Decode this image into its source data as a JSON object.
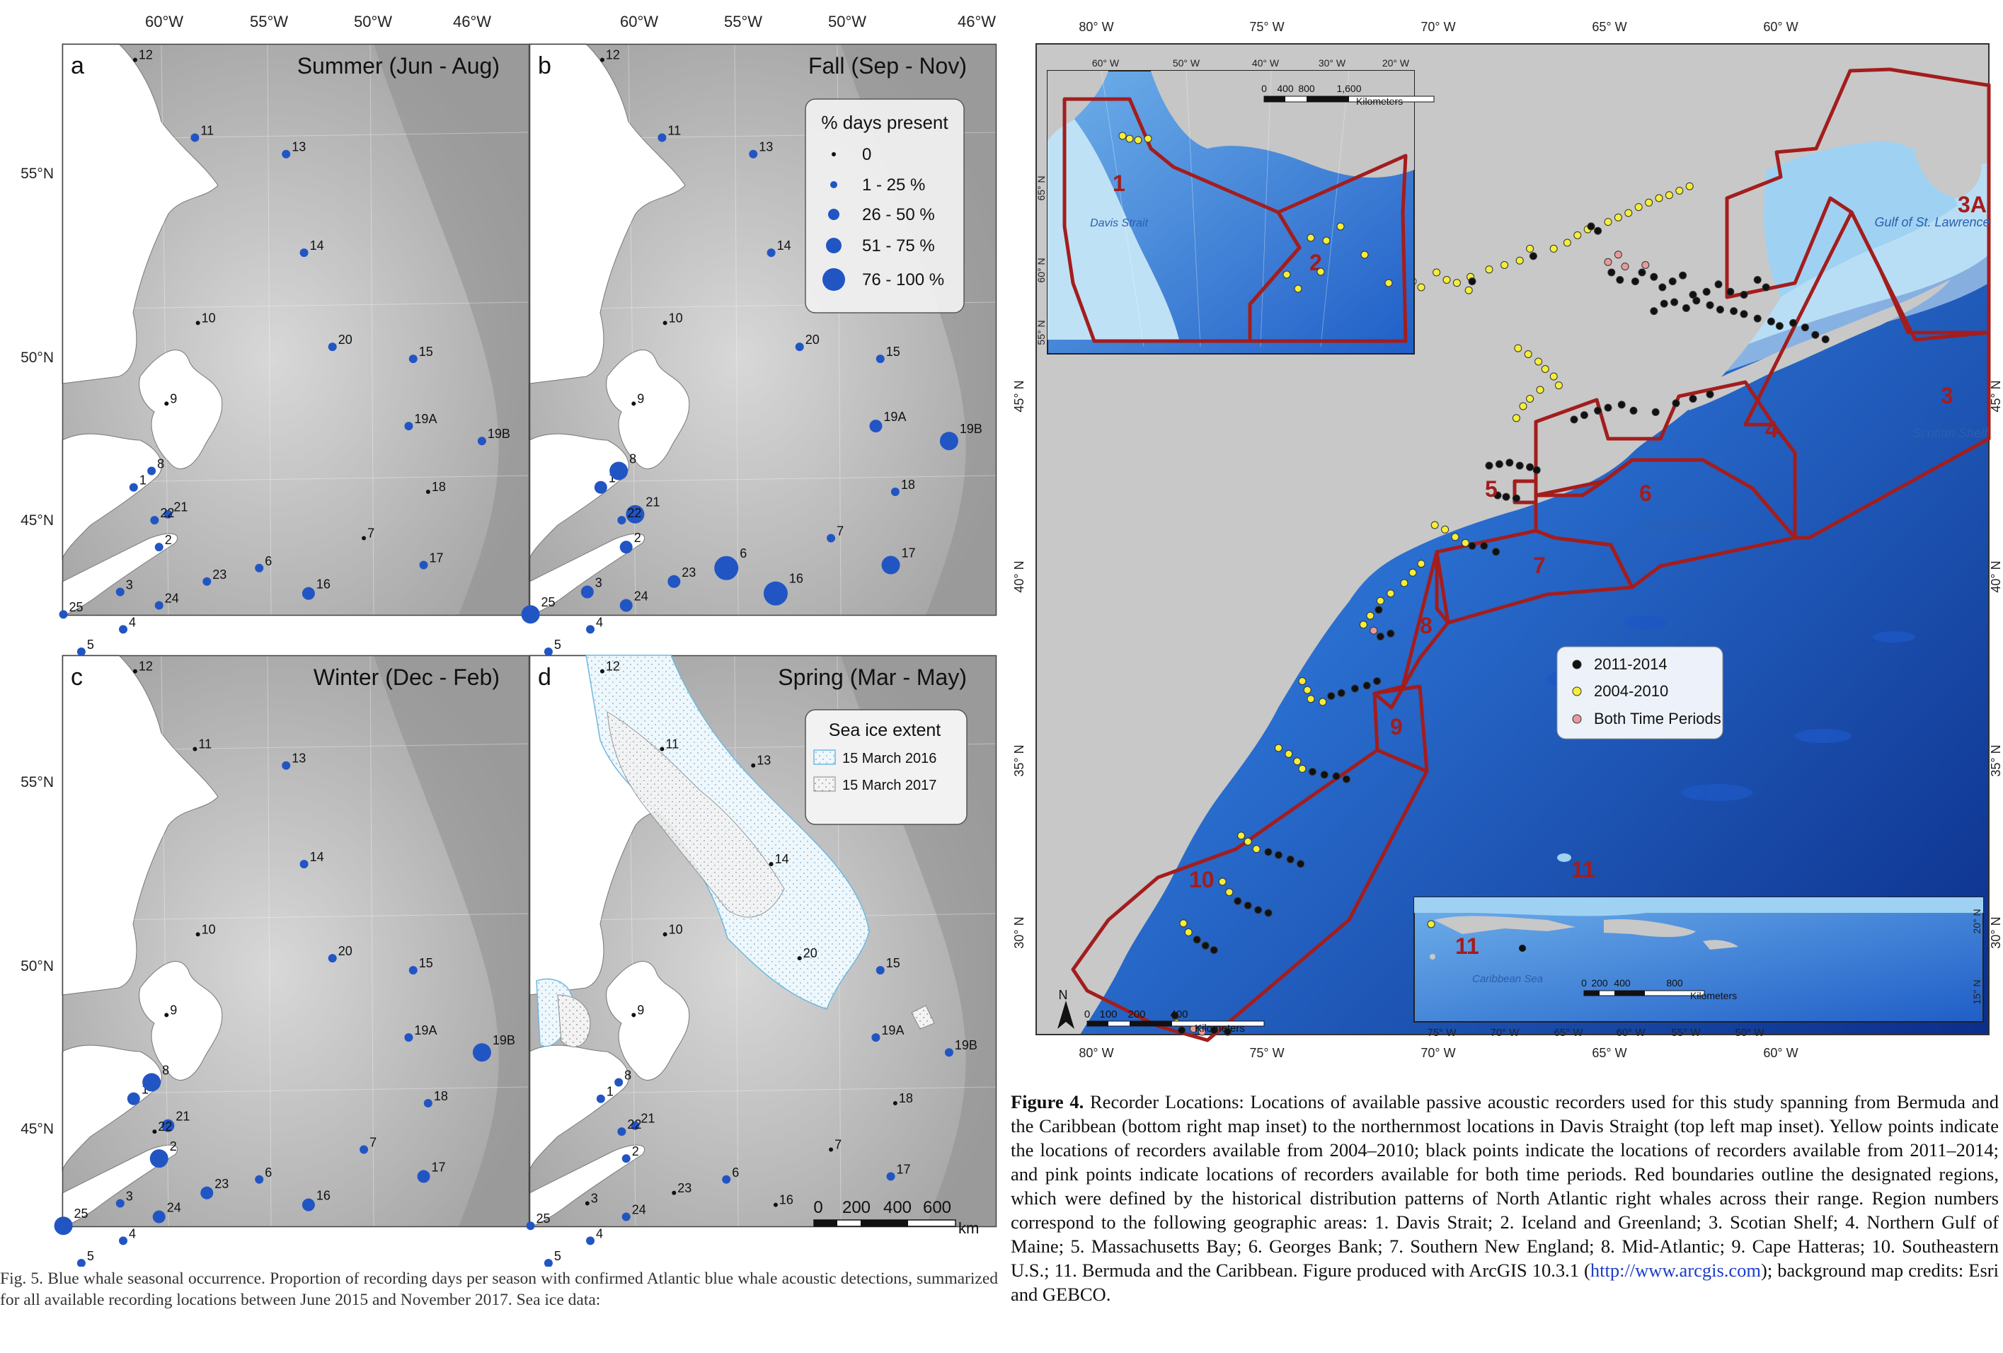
{
  "fig5": {
    "lon_labels": [
      "60°W",
      "55°W",
      "50°W",
      "46°W"
    ],
    "lat_labels": [
      "55°N",
      "50°N",
      "45°N"
    ],
    "panels": [
      {
        "letter": "a",
        "season": "Summer (Jun - Aug)"
      },
      {
        "letter": "b",
        "season": "Fall (Sep - Nov)"
      },
      {
        "letter": "c",
        "season": "Winter (Dec - Feb)"
      },
      {
        "letter": "d",
        "season": "Spring (Mar - May)"
      }
    ],
    "site_labels": [
      "1",
      "2",
      "3",
      "4",
      "5",
      "6",
      "7",
      "8",
      "9",
      "10",
      "11",
      "12",
      "13",
      "14",
      "15",
      "16",
      "17",
      "18",
      "19A",
      "19B",
      "20",
      "21",
      "22",
      "23",
      "24",
      "25"
    ],
    "legend_presence": {
      "title": "% days present",
      "items": [
        "0",
        "1 - 25 %",
        "26 - 50 %",
        "51 - 75 %",
        "76 - 100 %"
      ],
      "colors": {
        "zero": "#111111",
        "present": "#2255c4"
      }
    },
    "legend_ice": {
      "title": "Sea ice extent",
      "items": [
        "15 March 2016",
        "15 March 2017"
      ],
      "colors": {
        "ice2016": "#7cc4e6",
        "ice2017": "#999999"
      }
    },
    "scale_bar": {
      "labels": [
        "0",
        "200",
        "400",
        "600"
      ],
      "unit": "km"
    },
    "caption": "Fig. 5. Blue whale seasonal occurrence. Proportion of recording days per season with confirmed Atlantic blue whale acoustic detections, summarized for all available recording locations between June 2015 and November 2017. Sea ice data:"
  },
  "fig4": {
    "lon_labels": [
      "80° W",
      "75° W",
      "70° W",
      "65° W",
      "60° W"
    ],
    "lat_labels": [
      "45° N",
      "40° N",
      "35° N",
      "30° N"
    ],
    "region_labels": [
      "1",
      "2",
      "3",
      "3A",
      "4",
      "5",
      "6",
      "7",
      "8",
      "9",
      "10",
      "11"
    ],
    "place_labels": {
      "davis": "Davis Strait",
      "gulf": "Gulf of St. Lawrence",
      "scotian": "Scotian Shelf",
      "georges": "Georges Bank",
      "caribbean": "Caribbean Sea"
    },
    "inset_top": {
      "lon_labels": [
        "60° W",
        "50° W",
        "40° W",
        "30° W",
        "20° W"
      ],
      "lat_labels": [
        "65° N",
        "60° N",
        "55° N"
      ],
      "scale_labels": [
        "0",
        "400",
        "800",
        "1,600"
      ],
      "scale_unit": "Kilometers"
    },
    "inset_bottom": {
      "lon_labels": [
        "75° W",
        "70° W",
        "65° W",
        "60° W",
        "55° W",
        "50° W"
      ],
      "lat_labels": [
        "20° N",
        "15° N"
      ],
      "scale_labels": [
        "0",
        "200",
        "400",
        "800"
      ],
      "scale_unit": "Kilometers"
    },
    "main_scale": {
      "labels": [
        "0",
        "100",
        "200",
        "400"
      ],
      "unit": "Kilometers"
    },
    "legend": {
      "items": [
        "2011-2014",
        "2004-2010",
        "Both Time Periods"
      ],
      "colors": {
        "black": "#111111",
        "yellow": "#f4ee3a",
        "pink": "#e89a9a"
      }
    },
    "region_color": "#a31d1d",
    "caption_bold": "Figure 4.",
    "caption_text": "  Recorder Locations: Locations of available passive acoustic recorders used for this study spanning from Bermuda and the Caribbean (bottom right map inset) to the northernmost locations in Davis Straight (top left map inset). Yellow points indicate the locations of recorders available from 2004–2010; black points indicate the locations of recorders available from 2011–2014; and pink points indicate locations of recorders available for both time periods. Red boundaries outline the designated regions, which were defined by the historical distribution patterns of North Atlantic right whales across their range. Region numbers correspond to the following geographic areas: 1. Davis Strait; 2. Iceland and Greenland; 3. Scotian Shelf; 4. Northern Gulf of Maine; 5. Massachusetts Bay; 6. Georges Bank; 7. Southern New England; 8. Mid-Atlantic; 9. Cape Hatteras; 10. Southeastern U.S.; 11. Bermuda and the Caribbean. Figure produced with ArcGIS 10.3.1 (",
    "caption_link": "http://www.arcgis.com",
    "caption_end": "); background map credits: Esri and GEBCO."
  }
}
